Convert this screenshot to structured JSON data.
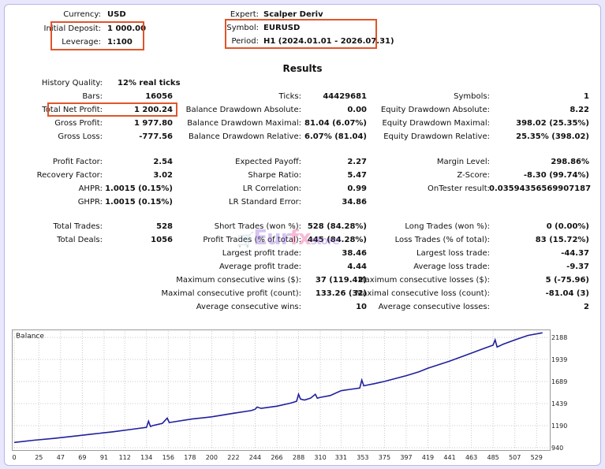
{
  "header": {
    "currency_label": "Currency:",
    "currency_value": "USD",
    "deposit_label": "Initial Deposit:",
    "deposit_value": "1 000.00",
    "leverage_label": "Leverage:",
    "leverage_value": "1:100",
    "expert_label": "Expert:",
    "expert_value": "Scalper Deriv",
    "symbol_label": "Symbol:",
    "symbol_value": "EURUSD",
    "period_label": "Period:",
    "period_value": "H1 (2024.01.01 - 2026.07.31)"
  },
  "results_title": "Results",
  "stats": {
    "history_quality": {
      "label": "History Quality:",
      "value": "12% real ticks"
    },
    "bars": {
      "label": "Bars:",
      "value": "16056"
    },
    "ticks": {
      "label": "Ticks:",
      "value": "44429681"
    },
    "symbols": {
      "label": "Symbols:",
      "value": "1"
    },
    "total_net_profit": {
      "label": "Total Net Profit:",
      "value": "1 200.24"
    },
    "balance_dd_abs": {
      "label": "Balance Drawdown Absolute:",
      "value": "0.00"
    },
    "equity_dd_abs": {
      "label": "Equity Drawdown Absolute:",
      "value": "8.22"
    },
    "gross_profit": {
      "label": "Gross Profit:",
      "value": "1 977.80"
    },
    "balance_dd_max": {
      "label": "Balance Drawdown Maximal:",
      "value": "81.04 (6.07%)"
    },
    "equity_dd_max": {
      "label": "Equity Drawdown Maximal:",
      "value": "398.02 (25.35%)"
    },
    "gross_loss": {
      "label": "Gross Loss:",
      "value": "-777.56"
    },
    "balance_dd_rel": {
      "label": "Balance Drawdown Relative:",
      "value": "6.07% (81.04)"
    },
    "equity_dd_rel": {
      "label": "Equity Drawdown Relative:",
      "value": "25.35% (398.02)"
    },
    "profit_factor": {
      "label": "Profit Factor:",
      "value": "2.54"
    },
    "expected_payoff": {
      "label": "Expected Payoff:",
      "value": "2.27"
    },
    "margin_level": {
      "label": "Margin Level:",
      "value": "298.86%"
    },
    "recovery_factor": {
      "label": "Recovery Factor:",
      "value": "3.02"
    },
    "sharpe_ratio": {
      "label": "Sharpe Ratio:",
      "value": "5.47"
    },
    "z_score": {
      "label": "Z-Score:",
      "value": "-8.30 (99.74%)"
    },
    "ahpr": {
      "label": "AHPR:",
      "value": "1.0015 (0.15%)"
    },
    "lr_correlation": {
      "label": "LR Correlation:",
      "value": "0.99"
    },
    "ontester": {
      "label": "OnTester result:",
      "value": "0.03594356569907187"
    },
    "ghpr": {
      "label": "GHPR:",
      "value": "1.0015 (0.15%)"
    },
    "lr_std_error": {
      "label": "LR Standard Error:",
      "value": "34.86"
    },
    "total_trades": {
      "label": "Total Trades:",
      "value": "528"
    },
    "short_trades": {
      "label": "Short Trades (won %):",
      "value": "528 (84.28%)"
    },
    "long_trades": {
      "label": "Long Trades (won %):",
      "value": "0 (0.00%)"
    },
    "total_deals": {
      "label": "Total Deals:",
      "value": "1056"
    },
    "profit_trades": {
      "label": "Profit Trades (% of total):",
      "value": "445 (84.28%)"
    },
    "loss_trades": {
      "label": "Loss Trades (% of total):",
      "value": "83 (15.72%)"
    },
    "largest_profit": {
      "label": "Largest profit trade:",
      "value": "38.46"
    },
    "largest_loss": {
      "label": "Largest loss trade:",
      "value": "-44.37"
    },
    "avg_profit": {
      "label": "Average profit trade:",
      "value": "4.44"
    },
    "avg_loss": {
      "label": "Average loss trade:",
      "value": "-9.37"
    },
    "max_consec_wins": {
      "label": "Maximum consecutive wins ($):",
      "value": "37 (119.42)"
    },
    "max_consec_losses": {
      "label": "Maximum consecutive losses ($):",
      "value": "5 (-75.96)"
    },
    "maximal_consec_profit": {
      "label": "Maximal consecutive profit (count):",
      "value": "133.26 (32)"
    },
    "maximal_consec_loss": {
      "label": "Maximal consecutive loss (count):",
      "value": "-81.04 (3)"
    },
    "avg_consec_wins": {
      "label": "Average consecutive wins:",
      "value": "10"
    },
    "avg_consec_losses": {
      "label": "Average consecutive losses:",
      "value": "2"
    }
  },
  "watermark": {
    "part1": "Eur",
    "part2": "fx",
    "part3": "store"
  },
  "colors": {
    "accent_box": "#e2542a",
    "balance_line": "#1f1f9e"
  },
  "chart_data": {
    "type": "line",
    "title": "Balance",
    "x_ticks": [
      "0",
      "25",
      "47",
      "69",
      "91",
      "112",
      "134",
      "156",
      "178",
      "200",
      "222",
      "244",
      "266",
      "288",
      "310",
      "331",
      "353",
      "375",
      "397",
      "419",
      "441",
      "463",
      "485",
      "507",
      "529"
    ],
    "y_ticks": [
      "940",
      "1190",
      "1439",
      "1689",
      "1939",
      "2188"
    ],
    "xlim": [
      0,
      540
    ],
    "ylim": [
      940,
      2260
    ],
    "series": [
      {
        "x": [
          0,
          20,
          40,
          60,
          80,
          100,
          120,
          134,
          136,
          138,
          140,
          150,
          155,
          157,
          160,
          180,
          200,
          222,
          240,
          244,
          246,
          250,
          266,
          280,
          286,
          288,
          290,
          294,
          300,
          305,
          307,
          310,
          320,
          331,
          340,
          350,
          352,
          354,
          358,
          365,
          375,
          397,
          410,
          419,
          430,
          441,
          463,
          475,
          485,
          487,
          489,
          495,
          507,
          520,
          535
        ],
        "y": [
          1000,
          1025,
          1045,
          1070,
          1095,
          1120,
          1150,
          1170,
          1240,
          1180,
          1190,
          1215,
          1275,
          1225,
          1230,
          1265,
          1290,
          1330,
          1360,
          1375,
          1400,
          1385,
          1410,
          1445,
          1465,
          1545,
          1490,
          1480,
          1500,
          1545,
          1500,
          1510,
          1530,
          1585,
          1600,
          1615,
          1705,
          1640,
          1650,
          1665,
          1690,
          1755,
          1800,
          1840,
          1880,
          1920,
          2010,
          2060,
          2100,
          2160,
          2080,
          2110,
          2160,
          2210,
          2240
        ]
      }
    ]
  }
}
